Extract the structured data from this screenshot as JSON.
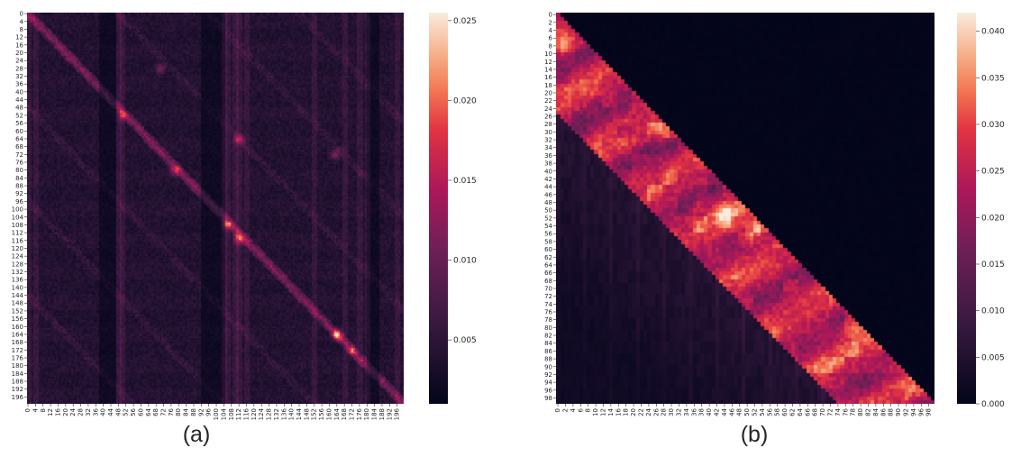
{
  "chart_data": [
    {
      "type": "heatmap",
      "panel_label": "(a)",
      "size": 200,
      "tick_step": 4,
      "colorbar": {
        "min": 0.001,
        "max": 0.0255,
        "ticks": [
          0.005,
          0.01,
          0.015,
          0.02,
          0.025
        ],
        "tick_labels": [
          "0.005",
          "0.010",
          "0.015",
          "0.020",
          "0.025"
        ]
      },
      "colormap": "rocket",
      "pattern": "dense attention map with bright diagonal, vertical stripes and repeated off-diagonal blocks",
      "hotspots": [
        {
          "row": 28,
          "col": 70,
          "value": 0.011
        },
        {
          "row": 64,
          "col": 112,
          "value": 0.012
        },
        {
          "row": 72,
          "col": 163,
          "value": 0.012
        },
        {
          "row": 108,
          "col": 106,
          "value": 0.015
        },
        {
          "row": 115,
          "col": 112,
          "value": 0.016
        },
        {
          "row": 164,
          "col": 164,
          "value": 0.018
        },
        {
          "row": 172,
          "col": 172,
          "value": 0.014
        },
        {
          "row": 52,
          "col": 50,
          "value": 0.011
        },
        {
          "row": 80,
          "col": 78,
          "value": 0.013
        }
      ]
    },
    {
      "type": "heatmap",
      "panel_label": "(b)",
      "size": 100,
      "tick_step": 2,
      "colorbar": {
        "min": 0.0,
        "max": 0.042,
        "ticks": [
          0.0,
          0.005,
          0.01,
          0.015,
          0.02,
          0.025,
          0.03,
          0.035,
          0.04
        ],
        "tick_labels": [
          "0.000",
          "0.005",
          "0.010",
          "0.015",
          "0.020",
          "0.025",
          "0.030",
          "0.035",
          "0.040"
        ]
      },
      "colormap": "rocket",
      "pattern": "banded attention: values near zero above diagonal, high band of width ~25 below diagonal, low values further below",
      "band_width": 25,
      "hotspots": [
        {
          "row": 52,
          "col": 44,
          "value": 0.04
        },
        {
          "row": 55,
          "col": 52,
          "value": 0.042
        },
        {
          "row": 30,
          "col": 28,
          "value": 0.035
        },
        {
          "row": 8,
          "col": 2,
          "value": 0.035
        },
        {
          "row": 80,
          "col": 78,
          "value": 0.034
        }
      ]
    }
  ]
}
